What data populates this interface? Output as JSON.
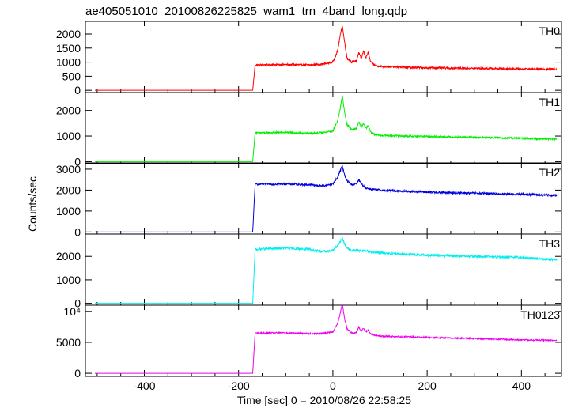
{
  "chart_data": {
    "type": "line",
    "title": "ae405051010_20100826225825_wam1_trn_4band_long.qdp",
    "xlabel": "Time [sec] 0 = 2010/08/26 22:58:25",
    "ylabel": "Counts/sec",
    "xlim": [
      -525,
      485
    ],
    "x_ticks": [
      "-400",
      "-200",
      "0",
      "200",
      "400"
    ],
    "x_tick_values": [
      -400,
      -200,
      0,
      200,
      400
    ],
    "grid": false,
    "panels": [
      {
        "name": "TH0",
        "color": "#ff0000",
        "ylim": [
          -80,
          2450
        ],
        "y_ticks": [
          "0",
          "500",
          "1000",
          "1500",
          "2000"
        ],
        "y_tick_values": [
          0,
          500,
          1000,
          1500,
          2000
        ],
        "x": [
          -505,
          -170,
          -165,
          -100,
          -50,
          -20,
          0,
          10,
          15,
          20,
          25,
          30,
          40,
          50,
          55,
          60,
          65,
          70,
          75,
          80,
          90,
          100,
          150,
          200,
          300,
          400,
          475
        ],
        "values": [
          0,
          0,
          900,
          910,
          900,
          930,
          1000,
          1400,
          1900,
          2300,
          1700,
          1150,
          1000,
          1050,
          1350,
          1100,
          1400,
          1150,
          1350,
          1000,
          880,
          850,
          820,
          800,
          780,
          760,
          750
        ],
        "noise": 35
      },
      {
        "name": "TH1",
        "color": "#00ee00",
        "ylim": [
          -80,
          2700
        ],
        "y_ticks": [
          "0",
          "1000",
          "2000"
        ],
        "y_tick_values": [
          0,
          1000,
          2000
        ],
        "x": [
          -505,
          -170,
          -165,
          -100,
          -50,
          -20,
          0,
          10,
          15,
          20,
          25,
          30,
          40,
          50,
          55,
          60,
          65,
          70,
          75,
          80,
          90,
          100,
          150,
          200,
          300,
          400,
          475
        ],
        "values": [
          0,
          0,
          1120,
          1140,
          1100,
          1130,
          1200,
          1600,
          2000,
          2600,
          1900,
          1450,
          1250,
          1300,
          1550,
          1350,
          1500,
          1300,
          1400,
          1150,
          1050,
          1030,
          1000,
          980,
          950,
          910,
          880
        ],
        "noise": 35
      },
      {
        "name": "TH2",
        "color": "#0000dd",
        "ylim": [
          -100,
          3300
        ],
        "y_ticks": [
          "0",
          "1000",
          "2000",
          "3000"
        ],
        "y_tick_values": [
          0,
          1000,
          2000,
          3000
        ],
        "x": [
          -505,
          -170,
          -165,
          -100,
          -50,
          -20,
          0,
          10,
          15,
          20,
          25,
          30,
          40,
          50,
          55,
          60,
          65,
          70,
          80,
          100,
          150,
          200,
          300,
          400,
          475
        ],
        "values": [
          0,
          0,
          2280,
          2300,
          2250,
          2200,
          2300,
          2600,
          2900,
          3150,
          2700,
          2450,
          2250,
          2300,
          2500,
          2300,
          2200,
          2100,
          2050,
          2000,
          1950,
          1900,
          1850,
          1800,
          1750
        ],
        "noise": 50
      },
      {
        "name": "TH3",
        "color": "#00eeee",
        "ylim": [
          -80,
          2950
        ],
        "y_ticks": [
          "0",
          "1000",
          "2000"
        ],
        "y_tick_values": [
          0,
          1000,
          2000
        ],
        "x": [
          -505,
          -170,
          -165,
          -100,
          -50,
          -20,
          0,
          10,
          15,
          20,
          25,
          30,
          40,
          60,
          80,
          100,
          150,
          200,
          300,
          400,
          475
        ],
        "values": [
          0,
          0,
          2300,
          2350,
          2300,
          2200,
          2250,
          2450,
          2600,
          2800,
          2500,
          2350,
          2250,
          2250,
          2200,
          2150,
          2100,
          2050,
          2000,
          1950,
          1850
        ],
        "noise": 50
      },
      {
        "name": "TH0123",
        "color": "#ee00ee",
        "ylim": [
          -500,
          11000
        ],
        "y_ticks": [
          "0",
          "5000",
          "10⁴"
        ],
        "y_tick_values": [
          0,
          5000,
          10000
        ],
        "x": [
          -505,
          -170,
          -165,
          -100,
          -50,
          -20,
          0,
          10,
          15,
          20,
          25,
          30,
          40,
          50,
          55,
          60,
          65,
          70,
          75,
          80,
          90,
          100,
          150,
          200,
          300,
          400,
          475
        ],
        "values": [
          0,
          0,
          6500,
          6550,
          6400,
          6450,
          6700,
          8000,
          9500,
          11200,
          8800,
          7200,
          6500,
          6600,
          7500,
          6800,
          7300,
          6700,
          7000,
          6400,
          6100,
          6000,
          5900,
          5800,
          5600,
          5400,
          5300
        ],
        "noise": 110
      }
    ]
  }
}
